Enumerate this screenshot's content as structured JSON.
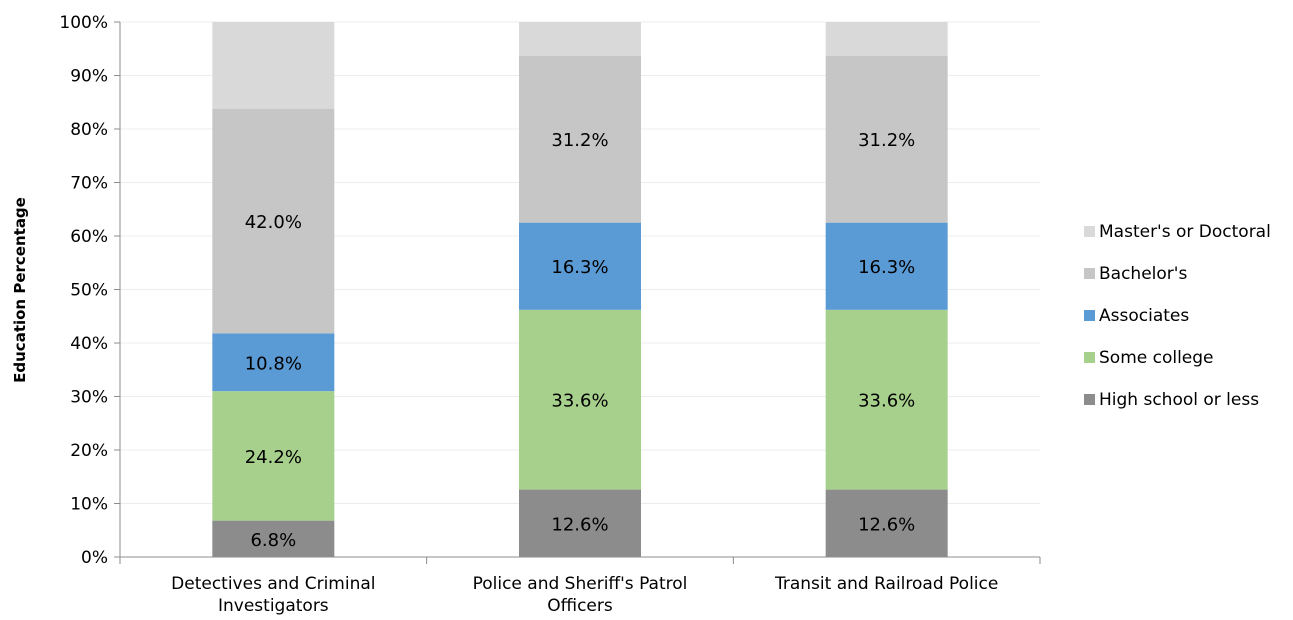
{
  "chart_data": {
    "type": "bar",
    "stacked": true,
    "title": "",
    "xlabel": "",
    "ylabel": "Education Percentage",
    "ylim": [
      0,
      100
    ],
    "y_ticks": [
      "0%",
      "10%",
      "20%",
      "30%",
      "40%",
      "50%",
      "60%",
      "70%",
      "80%",
      "90%",
      "100%"
    ],
    "grid": true,
    "legend_position": "right",
    "categories": [
      [
        "Detectives and Criminal",
        "Investigators"
      ],
      [
        "Police and Sheriff's Patrol",
        "Officers"
      ],
      [
        "Transit and Railroad Police"
      ]
    ],
    "series": [
      {
        "name": "High school or less",
        "color": "#8c8c8c",
        "values": [
          6.8,
          12.6,
          12.6
        ],
        "labels": [
          "6.8%",
          "12.6%",
          "12.6%"
        ]
      },
      {
        "name": "Some college",
        "color": "#a8d08d",
        "values": [
          24.2,
          33.6,
          33.6
        ],
        "labels": [
          "24.2%",
          "33.6%",
          "33.6%"
        ]
      },
      {
        "name": "Associates",
        "color": "#5b9bd5",
        "values": [
          10.8,
          16.3,
          16.3
        ],
        "labels": [
          "10.8%",
          "16.3%",
          "16.3%"
        ]
      },
      {
        "name": "Bachelor's",
        "color": "#c6c6c6",
        "values": [
          42.0,
          31.2,
          31.2
        ],
        "labels": [
          "42.0%",
          "31.2%",
          "31.2%"
        ]
      },
      {
        "name": "Master's or Doctoral",
        "color": "#d9d9d9",
        "values": [
          16.2,
          6.3,
          6.3
        ],
        "labels": [
          "",
          "",
          ""
        ]
      }
    ],
    "legend_order": [
      "Master's or Doctoral",
      "Bachelor's",
      "Associates",
      "Some college",
      "High school or less"
    ]
  }
}
